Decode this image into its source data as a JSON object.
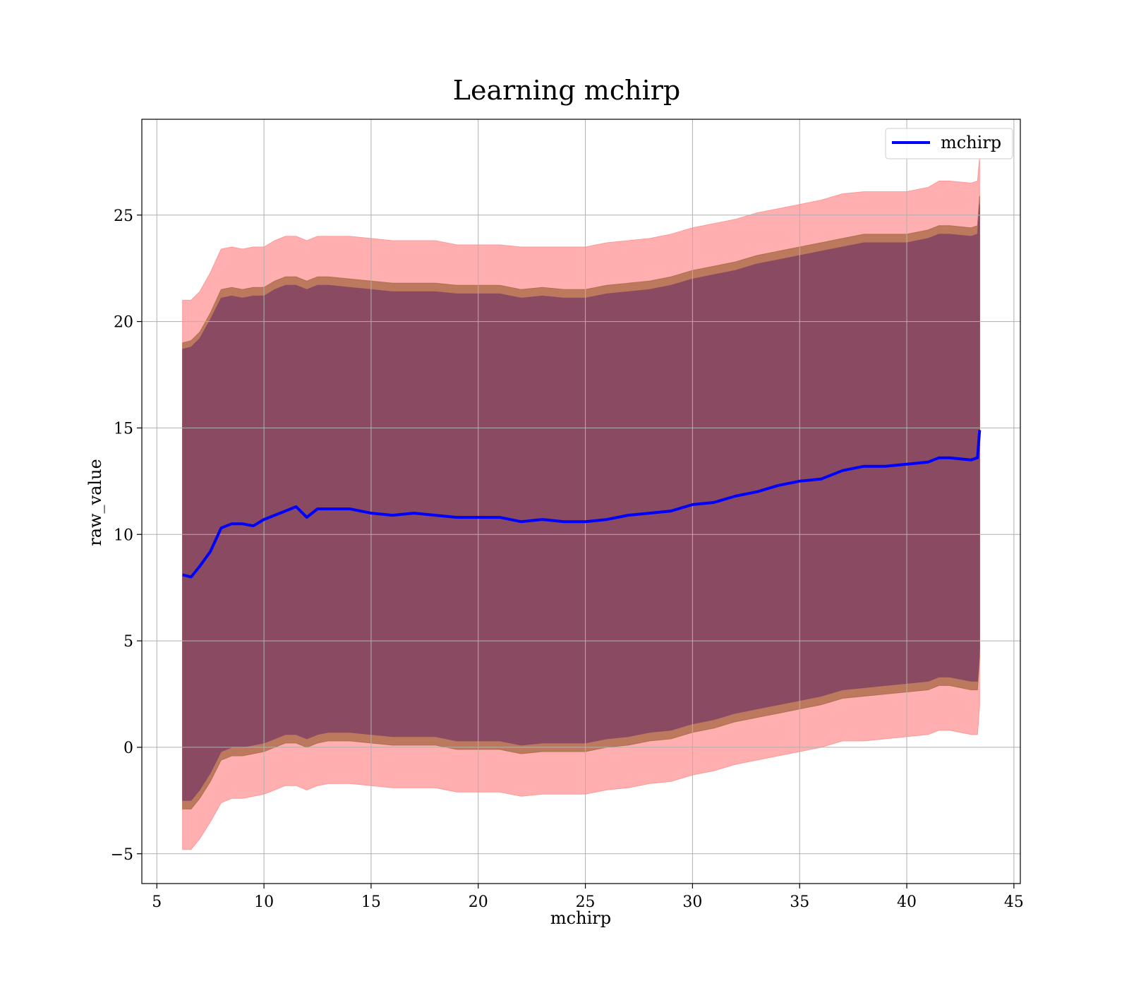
{
  "chart_data": {
    "type": "line",
    "title": "Learning mchirp",
    "xlabel": "mchirp",
    "ylabel": "raw_value",
    "xlim": [
      4.3,
      45.3
    ],
    "ylim": [
      -6.4,
      29.5
    ],
    "xticks": [
      5,
      10,
      15,
      20,
      25,
      30,
      35,
      40,
      45
    ],
    "yticks": [
      -5,
      0,
      5,
      10,
      15,
      20,
      25
    ],
    "xtick_labels": [
      "5",
      "10",
      "15",
      "20",
      "25",
      "30",
      "35",
      "40",
      "45"
    ],
    "ytick_labels": [
      "−5",
      "0",
      "5",
      "10",
      "15",
      "20",
      "25"
    ],
    "grid": true,
    "legend": {
      "position": "top-right",
      "entries": [
        "mchirp"
      ]
    },
    "colors": {
      "mean_line": "#0000ff",
      "outer_band": "#ff9999",
      "middle_band": "#b07050",
      "inner_band": "#8a4a62",
      "grid": "#b0b0b0"
    },
    "x": [
      6.2,
      6.6,
      7.0,
      7.5,
      8.0,
      8.5,
      9.0,
      9.5,
      10.0,
      10.5,
      11.0,
      11.5,
      12.0,
      12.5,
      13.0,
      14.0,
      15.0,
      16.0,
      17.0,
      18.0,
      19.0,
      20.0,
      21.0,
      22.0,
      23.0,
      24.0,
      25.0,
      26.0,
      27.0,
      28.0,
      29.0,
      30.0,
      31.0,
      32.0,
      33.0,
      34.0,
      35.0,
      36.0,
      37.0,
      38.0,
      39.0,
      40.0,
      41.0,
      41.5,
      42.0,
      43.0,
      43.3,
      43.4
    ],
    "series": [
      {
        "name": "mchirp",
        "kind": "line",
        "values": [
          8.1,
          8.0,
          8.5,
          9.2,
          10.3,
          10.5,
          10.5,
          10.4,
          10.7,
          10.9,
          11.1,
          11.3,
          10.8,
          11.2,
          11.2,
          11.2,
          11.0,
          10.9,
          11.0,
          10.9,
          10.8,
          10.8,
          10.8,
          10.6,
          10.7,
          10.6,
          10.6,
          10.7,
          10.9,
          11.0,
          11.1,
          11.4,
          11.5,
          11.8,
          12.0,
          12.3,
          12.5,
          12.6,
          13.0,
          13.2,
          13.2,
          13.3,
          13.4,
          13.6,
          13.6,
          13.5,
          13.6,
          14.9
        ]
      },
      {
        "kind": "band",
        "upper": [
          21.0,
          21.0,
          21.4,
          22.3,
          23.4,
          23.5,
          23.4,
          23.5,
          23.5,
          23.8,
          24.0,
          24.0,
          23.8,
          24.0,
          24.0,
          24.0,
          23.9,
          23.8,
          23.8,
          23.8,
          23.6,
          23.6,
          23.6,
          23.5,
          23.5,
          23.5,
          23.5,
          23.7,
          23.8,
          23.9,
          24.1,
          24.4,
          24.6,
          24.8,
          25.1,
          25.3,
          25.5,
          25.7,
          26.0,
          26.1,
          26.1,
          26.1,
          26.3,
          26.6,
          26.6,
          26.5,
          26.6,
          27.7
        ],
        "lower": [
          -4.8,
          -4.8,
          -4.3,
          -3.5,
          -2.6,
          -2.4,
          -2.4,
          -2.3,
          -2.2,
          -2.0,
          -1.8,
          -1.8,
          -2.0,
          -1.8,
          -1.7,
          -1.7,
          -1.8,
          -1.9,
          -1.9,
          -1.9,
          -2.1,
          -2.1,
          -2.1,
          -2.3,
          -2.2,
          -2.2,
          -2.2,
          -2.0,
          -1.9,
          -1.7,
          -1.6,
          -1.3,
          -1.1,
          -0.8,
          -0.6,
          -0.4,
          -0.2,
          0.0,
          0.3,
          0.3,
          0.4,
          0.5,
          0.6,
          0.8,
          0.8,
          0.6,
          0.6,
          2.0
        ]
      },
      {
        "kind": "band",
        "upper": [
          19.0,
          19.1,
          19.5,
          20.4,
          21.5,
          21.6,
          21.5,
          21.6,
          21.6,
          21.9,
          22.1,
          22.1,
          21.9,
          22.1,
          22.1,
          22.0,
          21.9,
          21.8,
          21.8,
          21.8,
          21.7,
          21.7,
          21.7,
          21.5,
          21.6,
          21.5,
          21.5,
          21.7,
          21.8,
          21.9,
          22.1,
          22.4,
          22.6,
          22.8,
          23.1,
          23.3,
          23.5,
          23.7,
          23.9,
          24.1,
          24.1,
          24.1,
          24.3,
          24.5,
          24.5,
          24.4,
          24.5,
          25.9
        ],
        "lower": [
          -2.9,
          -2.9,
          -2.4,
          -1.6,
          -0.6,
          -0.4,
          -0.4,
          -0.3,
          -0.2,
          0.0,
          0.2,
          0.2,
          0.0,
          0.2,
          0.3,
          0.3,
          0.2,
          0.1,
          0.1,
          0.1,
          -0.1,
          -0.1,
          -0.1,
          -0.3,
          -0.2,
          -0.2,
          -0.2,
          0.0,
          0.1,
          0.3,
          0.4,
          0.7,
          0.9,
          1.2,
          1.4,
          1.6,
          1.8,
          2.0,
          2.3,
          2.4,
          2.5,
          2.6,
          2.7,
          2.9,
          2.9,
          2.7,
          2.7,
          4.2
        ]
      },
      {
        "kind": "band",
        "upper": [
          18.7,
          18.8,
          19.2,
          20.1,
          21.1,
          21.2,
          21.1,
          21.2,
          21.2,
          21.5,
          21.7,
          21.7,
          21.5,
          21.7,
          21.7,
          21.6,
          21.5,
          21.4,
          21.4,
          21.4,
          21.3,
          21.3,
          21.3,
          21.1,
          21.2,
          21.1,
          21.1,
          21.3,
          21.4,
          21.5,
          21.7,
          22.0,
          22.2,
          22.4,
          22.7,
          22.9,
          23.1,
          23.3,
          23.5,
          23.7,
          23.7,
          23.7,
          23.9,
          24.1,
          24.1,
          24.0,
          24.1,
          25.5
        ],
        "lower": [
          -2.5,
          -2.5,
          -2.0,
          -1.2,
          -0.2,
          0.0,
          0.0,
          0.1,
          0.2,
          0.4,
          0.6,
          0.6,
          0.4,
          0.6,
          0.7,
          0.7,
          0.6,
          0.5,
          0.5,
          0.5,
          0.3,
          0.3,
          0.3,
          0.1,
          0.2,
          0.2,
          0.2,
          0.4,
          0.5,
          0.7,
          0.8,
          1.1,
          1.3,
          1.6,
          1.8,
          2.0,
          2.2,
          2.4,
          2.7,
          2.8,
          2.9,
          3.0,
          3.1,
          3.3,
          3.3,
          3.1,
          3.1,
          4.6
        ]
      }
    ]
  }
}
